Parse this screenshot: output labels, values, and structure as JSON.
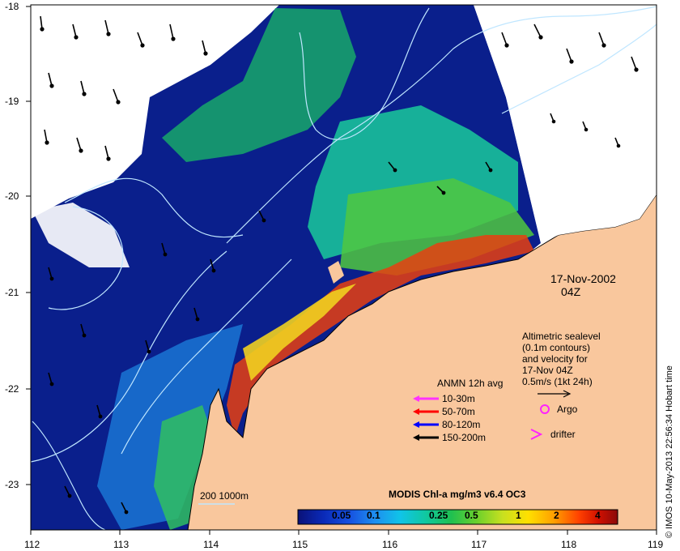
{
  "map": {
    "date_label": "17-Nov-2002",
    "time_label": "04Z",
    "x_ticks": [
      "112",
      "113",
      "114",
      "115",
      "116",
      "117",
      "118",
      "119"
    ],
    "y_ticks": [
      "-18",
      "-19",
      "-20",
      "-21",
      "-22",
      "-23"
    ],
    "altimetry_lines": [
      "Altimetric sealevel",
      "(0.1m contours)",
      "and velocity for",
      "17-Nov 04Z",
      "0.5m/s (1kt 24h)"
    ],
    "anmn": {
      "title": "ANMN 12h avg",
      "items": [
        {
          "label": "10-30m",
          "color": "#ff33ff"
        },
        {
          "label": "50-70m",
          "color": "#ff0000"
        },
        {
          "label": "80-120m",
          "color": "#0000ff"
        },
        {
          "label": "150-200m",
          "color": "#000000"
        }
      ]
    },
    "argo_label": "Argo",
    "drifter_label": "drifter",
    "bathy_label": "200  1000m",
    "credit": "© IMOS 10-May-2013 22:56:34 Hobart time",
    "colorbar": {
      "title": "MODIS Chl-a mg/m3 v6.4 OC3",
      "ticks": [
        "0.05",
        "0.1",
        "0.25",
        "0.5",
        "1",
        "2",
        "4"
      ]
    },
    "colors": {
      "land": "#f9c79d",
      "ocean_deep": "#0a1f8c",
      "argo": "#ff22ff",
      "contour": "#bfe6ff"
    }
  }
}
